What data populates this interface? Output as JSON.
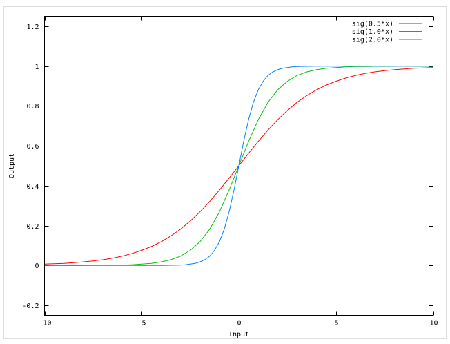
{
  "chart_data": {
    "type": "line",
    "title": "",
    "xlabel": "Input",
    "ylabel": "Output",
    "xlim": [
      -10,
      10
    ],
    "ylim": [
      -0.25,
      1.25
    ],
    "xticks": [
      "-10",
      "-5",
      "0",
      "5",
      "10"
    ],
    "xtick_values": [
      -10,
      -5,
      0,
      5,
      10
    ],
    "yticks": [
      "-0.2",
      "0",
      "0.2",
      "0.4",
      "0.6",
      "0.8",
      "1",
      "1.2"
    ],
    "ytick_values": [
      -0.2,
      0,
      0.2,
      0.4,
      0.6,
      0.8,
      1,
      1.2
    ],
    "grid": false,
    "legend_position": "top-right",
    "series": [
      {
        "name": "sig(0.5*x)",
        "color": "#ff0000",
        "x": [
          -10,
          -9.5,
          -9,
          -8.5,
          -8,
          -7.5,
          -7,
          -6.5,
          -6,
          -5.5,
          -5,
          -4.5,
          -4,
          -3.5,
          -3,
          -2.5,
          -2,
          -1.5,
          -1,
          -0.5,
          0,
          0.5,
          1,
          1.5,
          2,
          2.5,
          3,
          3.5,
          4,
          4.5,
          5,
          5.5,
          6,
          6.5,
          7,
          7.5,
          8,
          8.5,
          9,
          9.5,
          10
        ],
        "y": [
          0.007,
          0.009,
          0.011,
          0.014,
          0.018,
          0.023,
          0.029,
          0.037,
          0.047,
          0.06,
          0.076,
          0.095,
          0.119,
          0.148,
          0.182,
          0.223,
          0.269,
          0.321,
          0.378,
          0.438,
          0.5,
          0.562,
          0.622,
          0.679,
          0.731,
          0.777,
          0.818,
          0.852,
          0.881,
          0.905,
          0.924,
          0.94,
          0.953,
          0.963,
          0.971,
          0.977,
          0.982,
          0.986,
          0.989,
          0.991,
          0.993
        ]
      },
      {
        "name": "sig(1.0*x)",
        "color": "#00c000",
        "x": [
          -10,
          -9.5,
          -9,
          -8.5,
          -8,
          -7.5,
          -7,
          -6.5,
          -6,
          -5.5,
          -5,
          -4.5,
          -4,
          -3.5,
          -3,
          -2.5,
          -2,
          -1.5,
          -1,
          -0.5,
          0,
          0.5,
          1,
          1.5,
          2,
          2.5,
          3,
          3.5,
          4,
          4.5,
          5,
          5.5,
          6,
          6.5,
          7,
          7.5,
          8,
          8.5,
          9,
          9.5,
          10
        ],
        "y": [
          0,
          0,
          0,
          0,
          0,
          0.001,
          0.001,
          0.002,
          0.002,
          0.004,
          0.007,
          0.011,
          0.018,
          0.029,
          0.047,
          0.076,
          0.119,
          0.182,
          0.269,
          0.378,
          0.5,
          0.622,
          0.731,
          0.818,
          0.881,
          0.924,
          0.953,
          0.971,
          0.982,
          0.989,
          0.993,
          0.996,
          0.998,
          0.998,
          0.999,
          0.999,
          1,
          1,
          1,
          1,
          1
        ]
      },
      {
        "name": "sig(2.0*x)",
        "color": "#0080ff",
        "x": [
          -10,
          -6,
          -4,
          -3.5,
          -3,
          -2.75,
          -2.5,
          -2.25,
          -2,
          -1.75,
          -1.5,
          -1.25,
          -1,
          -0.75,
          -0.5,
          -0.25,
          0,
          0.25,
          0.5,
          0.75,
          1,
          1.25,
          1.5,
          1.75,
          2,
          2.25,
          2.5,
          2.75,
          3,
          3.5,
          4,
          6,
          10
        ],
        "y": [
          0,
          0,
          0,
          0.001,
          0.002,
          0.004,
          0.007,
          0.011,
          0.018,
          0.029,
          0.047,
          0.076,
          0.119,
          0.182,
          0.269,
          0.378,
          0.5,
          0.622,
          0.731,
          0.818,
          0.881,
          0.924,
          0.953,
          0.971,
          0.982,
          0.989,
          0.993,
          0.996,
          0.998,
          0.999,
          1,
          1,
          1
        ]
      }
    ]
  }
}
